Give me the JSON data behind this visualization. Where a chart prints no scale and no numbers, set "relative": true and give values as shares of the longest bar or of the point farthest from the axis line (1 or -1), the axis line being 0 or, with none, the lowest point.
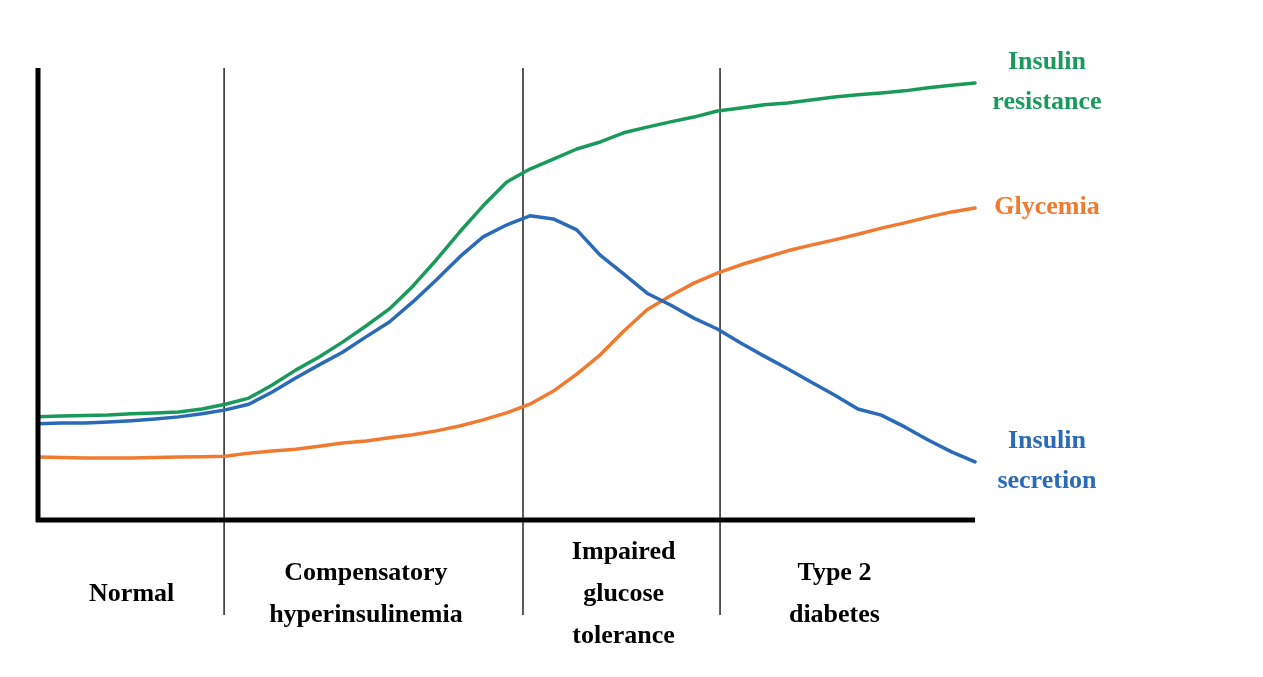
{
  "chart_data": {
    "type": "line",
    "relative": true,
    "tick_labels": "x",
    "categories": [
      null,
      null,
      null,
      null,
      "Normal",
      null,
      null,
      null,
      null,
      null,
      null,
      null,
      null,
      null,
      "Compensatory hyperinsulinemia",
      null,
      null,
      null,
      null,
      null,
      null,
      null,
      null,
      null,
      null,
      "Impaired glucose tolerance",
      null,
      null,
      null,
      null,
      null,
      null,
      null,
      null,
      "Type 2 diabetes",
      null,
      null,
      null,
      null,
      null,
      null
    ],
    "series": [
      {
        "name": "Insulin resistance",
        "color": "#1a9a5a",
        "values": [
          0.236,
          0.238,
          0.239,
          0.24,
          0.243,
          0.245,
          0.247,
          0.254,
          0.265,
          0.279,
          0.309,
          0.343,
          0.373,
          0.407,
          0.444,
          0.483,
          0.535,
          0.595,
          0.659,
          0.719,
          0.773,
          0.803,
          0.826,
          0.849,
          0.865,
          0.886,
          0.899,
          0.911,
          0.922,
          0.936,
          0.943,
          0.95,
          0.954,
          0.961,
          0.968,
          0.973,
          0.977,
          0.982,
          0.989,
          0.995,
          1
        ]
      },
      {
        "name": "Glycemia",
        "color": "#f07a30",
        "values": [
          0.144,
          0.143,
          0.142,
          0.142,
          0.142,
          0.143,
          0.144,
          0.145,
          0.146,
          0.153,
          0.158,
          0.162,
          0.169,
          0.176,
          0.181,
          0.188,
          0.195,
          0.204,
          0.215,
          0.229,
          0.245,
          0.265,
          0.295,
          0.334,
          0.378,
          0.432,
          0.481,
          0.513,
          0.542,
          0.565,
          0.584,
          0.6,
          0.616,
          0.629,
          0.641,
          0.654,
          0.668,
          0.68,
          0.693,
          0.705,
          0.714
        ]
      },
      {
        "name": "Insulin secretion",
        "color": "#2a6ab8",
        "values": [
          0.22,
          0.222,
          0.222,
          0.224,
          0.227,
          0.231,
          0.236,
          0.243,
          0.252,
          0.265,
          0.293,
          0.325,
          0.355,
          0.384,
          0.419,
          0.453,
          0.499,
          0.549,
          0.602,
          0.648,
          0.675,
          0.696,
          0.689,
          0.664,
          0.606,
          0.563,
          0.519,
          0.492,
          0.462,
          0.437,
          0.405,
          0.375,
          0.346,
          0.316,
          0.286,
          0.254,
          0.24,
          0.213,
          0.183,
          0.156,
          0.133
        ]
      }
    ]
  }
}
